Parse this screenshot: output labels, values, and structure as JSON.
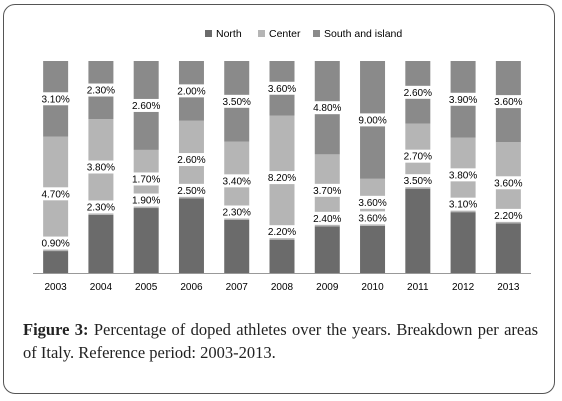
{
  "chart_data": {
    "type": "bar",
    "stacked": true,
    "categories": [
      "2003",
      "2004",
      "2005",
      "2006",
      "2007",
      "2008",
      "2009",
      "2010",
      "2011",
      "2012",
      "2013"
    ],
    "series": [
      {
        "name": "North",
        "color": "#6b6b6b",
        "values": [
          0.9,
          2.3,
          1.9,
          2.5,
          2.3,
          2.2,
          2.4,
          3.6,
          3.5,
          3.1,
          2.2
        ],
        "labels": [
          "0.90%",
          "2.30%",
          "1.90%",
          "2.50%",
          "2.30%",
          "2.20%",
          "2.40%",
          "3.60%",
          "3.50%",
          "3.10%",
          "2.20%"
        ]
      },
      {
        "name": "Center",
        "color": "#b5b5b5",
        "values": [
          4.7,
          3.8,
          1.7,
          2.6,
          3.4,
          8.2,
          3.7,
          3.6,
          2.7,
          3.8,
          3.6
        ],
        "labels": [
          "4.70%",
          "3.80%",
          "1.70%",
          "2.60%",
          "3.40%",
          "8.20%",
          "3.70%",
          "3.60%",
          "2.70%",
          "3.80%",
          "3.60%"
        ]
      },
      {
        "name": "South and island",
        "color": "#8a8a8a",
        "values": [
          3.1,
          2.3,
          2.6,
          2.0,
          3.5,
          3.6,
          4.8,
          9.0,
          2.6,
          3.9,
          3.6
        ],
        "labels": [
          "3.10%",
          "2.30%",
          "2.60%",
          "2.00%",
          "3.50%",
          "3.60%",
          "4.80%",
          "9.00%",
          "2.60%",
          "3.90%",
          "3.60%"
        ]
      }
    ],
    "normalized_to_100_percent": true,
    "legend_position": "top",
    "grid": false
  },
  "caption": {
    "label": "Figure 3:",
    "text": " Percentage of doped athletes over the years. Breakdown per areas of Italy. Reference period: 2003-2013."
  }
}
